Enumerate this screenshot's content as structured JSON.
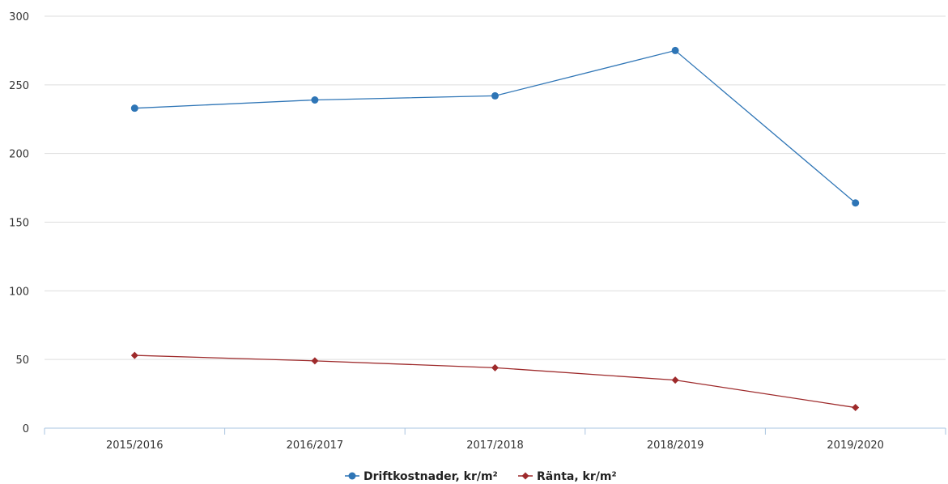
{
  "chart_data": {
    "type": "line",
    "categories": [
      "2015/2016",
      "2016/2017",
      "2017/2018",
      "2018/2019",
      "2019/2020"
    ],
    "series": [
      {
        "name": "Driftkostnader, kr/m²",
        "values": [
          233,
          239,
          242,
          275,
          164
        ],
        "color": "#2e75b6",
        "marker": "circle"
      },
      {
        "name": "Ränta, kr/m²",
        "values": [
          53,
          49,
          44,
          35,
          15
        ],
        "color": "#9e2a2b",
        "marker": "diamond"
      }
    ],
    "yticks": [
      "0",
      "50",
      "100",
      "150",
      "200",
      "250",
      "300"
    ],
    "ylim": [
      0,
      300
    ],
    "grid": true,
    "legend": "bottom-center"
  }
}
